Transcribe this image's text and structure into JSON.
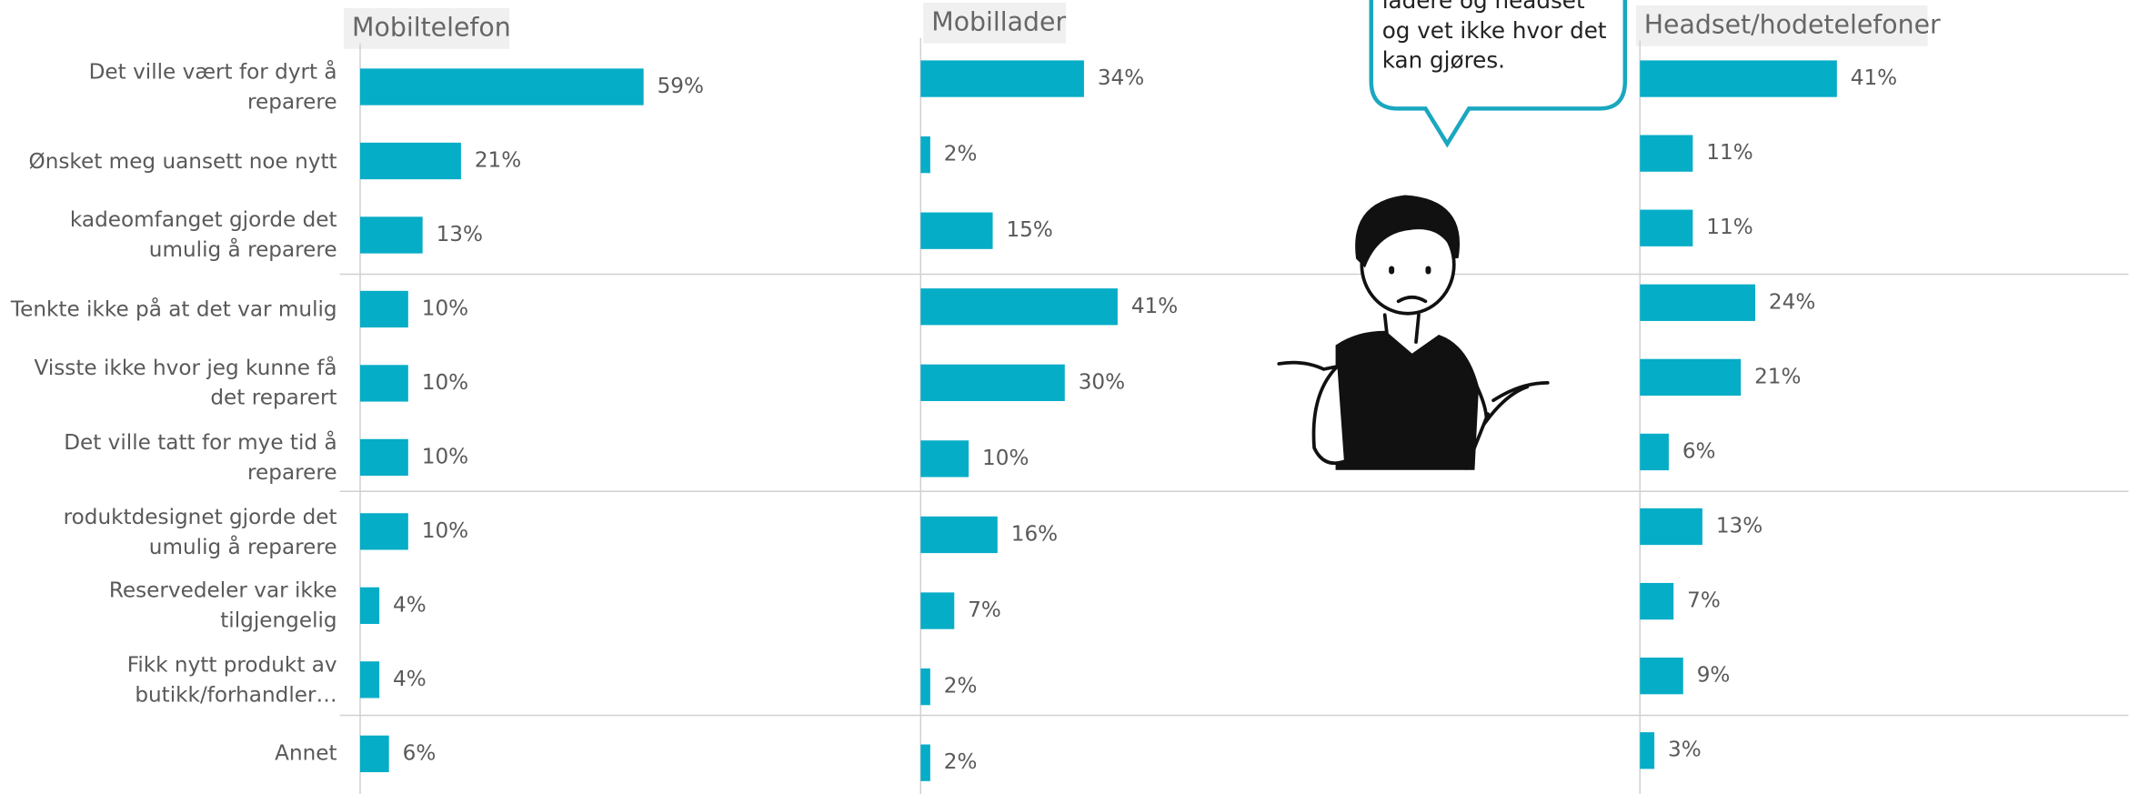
{
  "categories": [
    "Det ville vært for dyrt å reparere",
    "Ønsket meg uansett noe nytt",
    "kadeomfanget gjorde det umulig å reparere",
    "Tenkte ikke på at det var mulig",
    "Visste ikke hvor jeg kunne få det reparert",
    "Det ville tatt for mye tid å reparere",
    "roduktdesignet gjorde det umulig å reparere",
    "Reservedeler var ikke tilgjengelig",
    "Fikk nytt produkt av butikk/forhandler…",
    "Annet"
  ],
  "bubble_lines": [
    "ladere og headset",
    "og vet ikke hvor det",
    "kan gjøres."
  ],
  "chart_data": [
    {
      "type": "bar",
      "title": "Mobiltelefon",
      "color": "#06adc7",
      "values": [
        59,
        21,
        13,
        10,
        10,
        10,
        10,
        4,
        4,
        6
      ],
      "value_labels": [
        "59%",
        "21%",
        "13%",
        "10%",
        "10%",
        "10%",
        "10%",
        "4%",
        "4%",
        "6%"
      ]
    },
    {
      "type": "bar",
      "title": "Mobillader",
      "color": "#06adc7",
      "values": [
        34,
        2,
        15,
        41,
        30,
        10,
        16,
        7,
        2,
        2
      ],
      "value_labels": [
        "34%",
        "2%",
        "15%",
        "41%",
        "30%",
        "10%",
        "16%",
        "7%",
        "2%",
        "2%"
      ]
    },
    {
      "type": "bar",
      "title": "Headset/hodetelefoner",
      "color": "#06adc7",
      "values": [
        41,
        11,
        11,
        24,
        21,
        6,
        13,
        7,
        9,
        3
      ],
      "value_labels": [
        "41%",
        "11%",
        "11%",
        "24%",
        "21%",
        "6%",
        "13%",
        "7%",
        "9%",
        "3%"
      ]
    }
  ]
}
